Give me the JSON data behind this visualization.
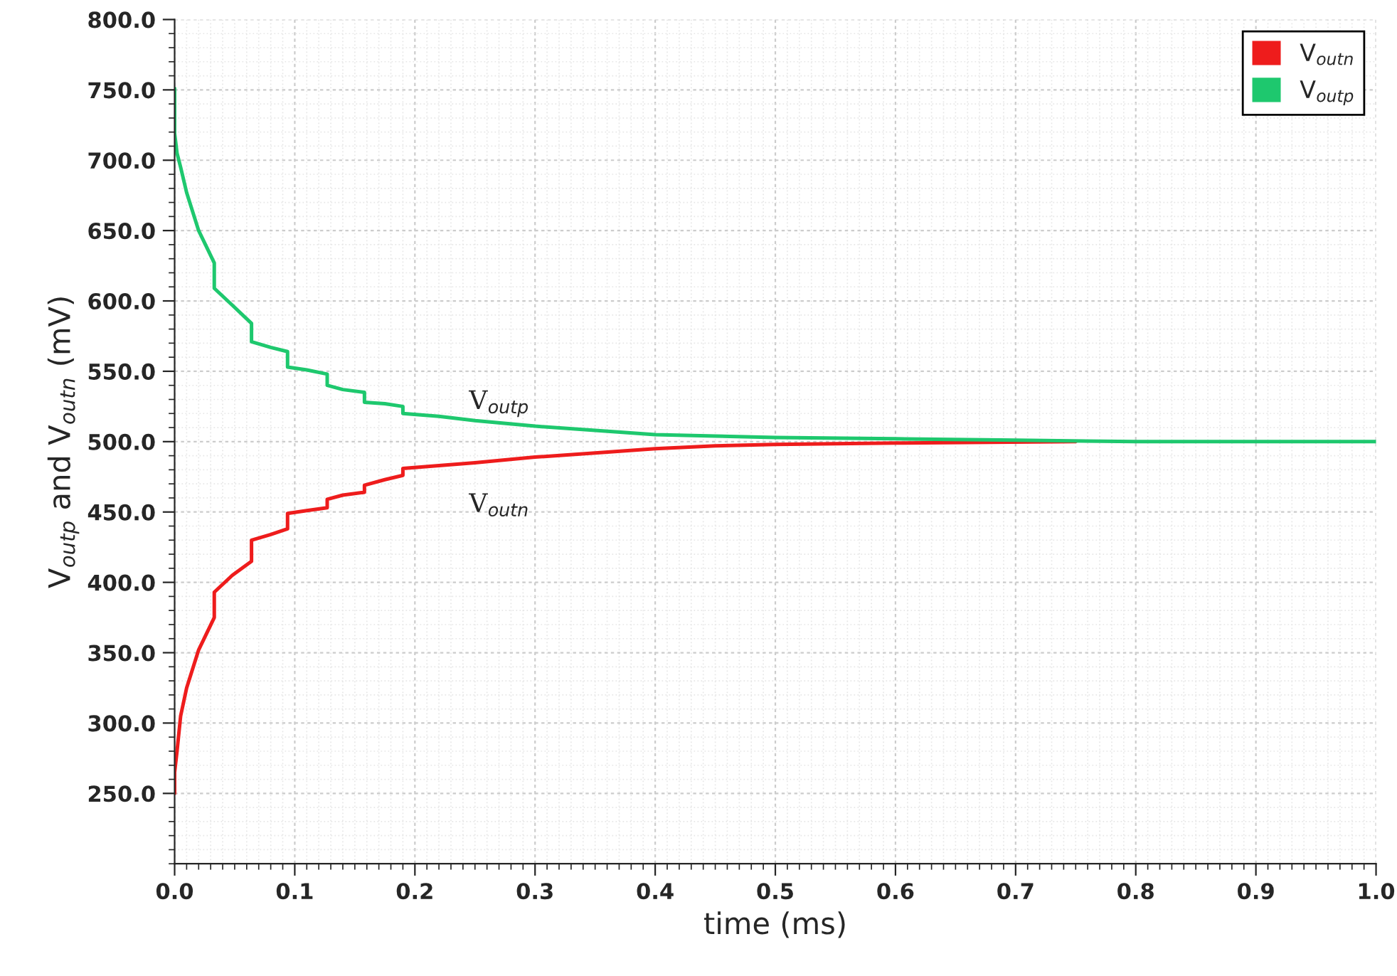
{
  "chart_data": {
    "type": "line",
    "xlabel": "time (ms)",
    "ylabel": "V$_{outp}$ and V$_{outn}$ (mV)",
    "xlim": [
      0,
      1.0
    ],
    "ylim": [
      200,
      800
    ],
    "xticks": [
      {
        "value": 0,
        "label": "0.0"
      },
      {
        "value": 0.1,
        "label": "0.1"
      },
      {
        "value": 0.2,
        "label": "0.2"
      },
      {
        "value": 0.3,
        "label": "0.3"
      },
      {
        "value": 0.4,
        "label": "0.4"
      },
      {
        "value": 0.5,
        "label": "0.5"
      },
      {
        "value": 0.6,
        "label": "0.6"
      },
      {
        "value": 0.7,
        "label": "0.7"
      },
      {
        "value": 0.8,
        "label": "0.8"
      },
      {
        "value": 0.9,
        "label": "0.9"
      },
      {
        "value": 1.0,
        "label": "1.0"
      }
    ],
    "yticks": [
      {
        "value": 250,
        "label": "250.0"
      },
      {
        "value": 300,
        "label": "300.0"
      },
      {
        "value": 350,
        "label": "350.0"
      },
      {
        "value": 400,
        "label": "400.0"
      },
      {
        "value": 450,
        "label": "450.0"
      },
      {
        "value": 500,
        "label": "500.0"
      },
      {
        "value": 550,
        "label": "550.0"
      },
      {
        "value": 600,
        "label": "600.0"
      },
      {
        "value": 650,
        "label": "650.0"
      },
      {
        "value": 700,
        "label": "700.0"
      },
      {
        "value": 750,
        "label": "750.0"
      },
      {
        "value": 800,
        "label": "800.0"
      }
    ],
    "grid": true,
    "legend": "top right",
    "marker": "none",
    "line_style": "solid",
    "series": [
      {
        "name": "V$_{outn}$",
        "color": "#ee1c1c",
        "x": [
          0,
          0,
          0.002,
          0.005,
          0.01,
          0.02,
          0.033,
          0.033,
          0.048,
          0.064,
          0.064,
          0.08,
          0.094,
          0.094,
          0.11,
          0.127,
          0.127,
          0.14,
          0.158,
          0.158,
          0.175,
          0.19,
          0.19,
          0.22,
          0.25,
          0.3,
          0.35,
          0.4,
          0.45,
          0.5,
          0.6,
          0.75
        ],
        "values": [
          250,
          265,
          280,
          305,
          325,
          352,
          375,
          393,
          405,
          415,
          430,
          434,
          438,
          449,
          451,
          453,
          459,
          462,
          464,
          469,
          473,
          476,
          481,
          483,
          485,
          489,
          492,
          495,
          497,
          498,
          499,
          500
        ]
      },
      {
        "name": "V$_{outp}$",
        "color": "#1ec86e",
        "x": [
          0,
          0,
          0.002,
          0.005,
          0.01,
          0.02,
          0.033,
          0.033,
          0.048,
          0.064,
          0.064,
          0.08,
          0.094,
          0.094,
          0.11,
          0.127,
          0.127,
          0.14,
          0.158,
          0.158,
          0.175,
          0.19,
          0.19,
          0.22,
          0.25,
          0.3,
          0.35,
          0.4,
          0.45,
          0.5,
          0.6,
          0.7,
          0.8,
          1.0
        ],
        "values": [
          751,
          719,
          705,
          695,
          677,
          650,
          627,
          609,
          597,
          584,
          571,
          567,
          564,
          553,
          551,
          548,
          540,
          537,
          535,
          528,
          527,
          525,
          520,
          518,
          515,
          511,
          508,
          505,
          504,
          503,
          502,
          501,
          500,
          500
        ]
      }
    ],
    "annotations": [
      "V$_{outp}$",
      "V$_{outn}$"
    ]
  }
}
